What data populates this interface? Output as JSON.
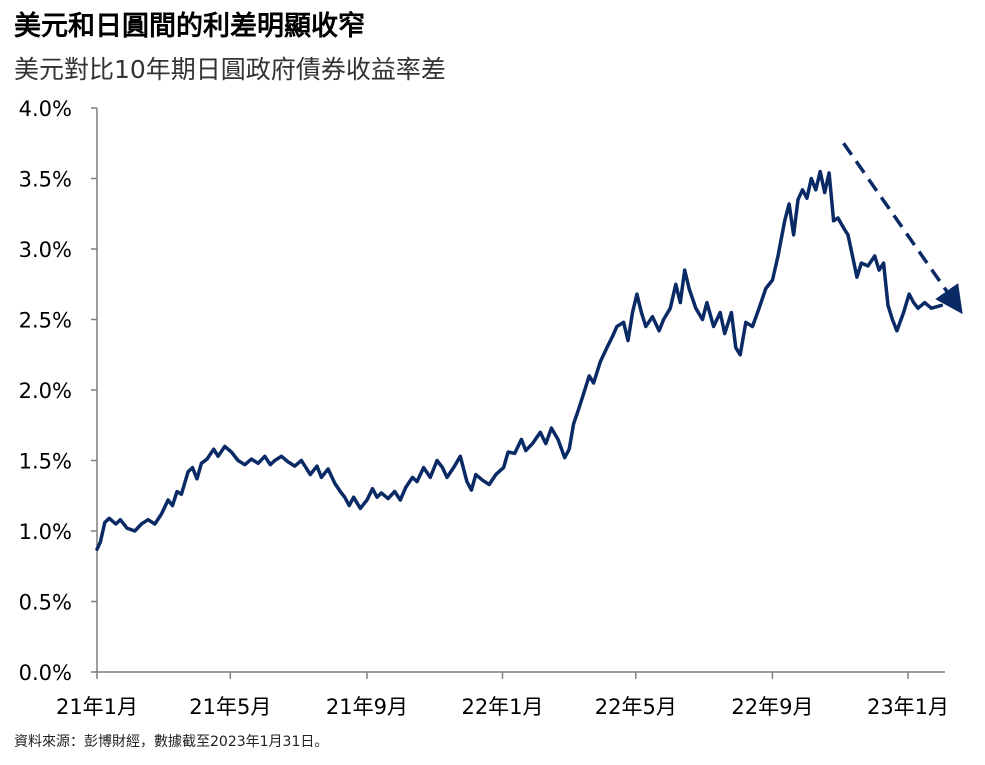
{
  "header": {
    "title": "美元和日圓間的利差明顯收窄",
    "subtitle": "美元對比10年期日圓政府債券收益率差"
  },
  "footer": {
    "source": "資料來源：彭博財經，數據截至2023年1月31日。"
  },
  "colors": {
    "line": "#0a2a66",
    "axis": "#7f7f7f"
  },
  "chart_data": {
    "type": "line",
    "title": "美元和日圓間的利差明顯收窄",
    "subtitle": "美元對比10年期日圓政府債券收益率差",
    "ylim": [
      0,
      4
    ],
    "y_ticks": [
      0,
      0.5,
      1,
      1.5,
      2,
      2.5,
      3,
      3.5,
      4
    ],
    "y_tick_labels": [
      "0.0%",
      "0.5%",
      "1.0%",
      "1.5%",
      "2.0%",
      "2.5%",
      "3.0%",
      "3.5%",
      "4.0%"
    ],
    "x_range": [
      "2021-01-01",
      "2023-01-31"
    ],
    "x_ticks": [
      "2021-01-01",
      "2021-05-01",
      "2021-09-01",
      "2022-01-01",
      "2022-05-01",
      "2022-09-01",
      "2023-01-01"
    ],
    "x_tick_labels": [
      "21年1月",
      "21年5月",
      "21年9月",
      "22年1月",
      "22年5月",
      "22年9月",
      "23年1月"
    ],
    "grid": false,
    "series": [
      {
        "points": [
          [
            "2021-01-01",
            0.87
          ],
          [
            "2021-01-04",
            0.92
          ],
          [
            "2021-01-08",
            1.06
          ],
          [
            "2021-01-12",
            1.09
          ],
          [
            "2021-01-18",
            1.05
          ],
          [
            "2021-01-22",
            1.08
          ],
          [
            "2021-01-28",
            1.02
          ],
          [
            "2021-02-04",
            1.0
          ],
          [
            "2021-02-10",
            1.05
          ],
          [
            "2021-02-16",
            1.08
          ],
          [
            "2021-02-22",
            1.05
          ],
          [
            "2021-02-28",
            1.12
          ],
          [
            "2021-03-06",
            1.22
          ],
          [
            "2021-03-10",
            1.18
          ],
          [
            "2021-03-14",
            1.28
          ],
          [
            "2021-03-18",
            1.26
          ],
          [
            "2021-03-24",
            1.42
          ],
          [
            "2021-03-28",
            1.45
          ],
          [
            "2021-04-01",
            1.37
          ],
          [
            "2021-04-05",
            1.48
          ],
          [
            "2021-04-10",
            1.51
          ],
          [
            "2021-04-16",
            1.58
          ],
          [
            "2021-04-20",
            1.53
          ],
          [
            "2021-04-26",
            1.6
          ],
          [
            "2021-05-02",
            1.56
          ],
          [
            "2021-05-08",
            1.5
          ],
          [
            "2021-05-14",
            1.47
          ],
          [
            "2021-05-20",
            1.51
          ],
          [
            "2021-05-26",
            1.48
          ],
          [
            "2021-06-01",
            1.53
          ],
          [
            "2021-06-06",
            1.47
          ],
          [
            "2021-06-10",
            1.5
          ],
          [
            "2021-06-16",
            1.53
          ],
          [
            "2021-06-22",
            1.49
          ],
          [
            "2021-06-28",
            1.46
          ],
          [
            "2021-07-04",
            1.5
          ],
          [
            "2021-07-08",
            1.45
          ],
          [
            "2021-07-12",
            1.4
          ],
          [
            "2021-07-18",
            1.46
          ],
          [
            "2021-07-22",
            1.38
          ],
          [
            "2021-07-28",
            1.44
          ],
          [
            "2021-08-03",
            1.34
          ],
          [
            "2021-08-08",
            1.28
          ],
          [
            "2021-08-12",
            1.24
          ],
          [
            "2021-08-16",
            1.18
          ],
          [
            "2021-08-20",
            1.24
          ],
          [
            "2021-08-26",
            1.16
          ],
          [
            "2021-09-01",
            1.22
          ],
          [
            "2021-09-06",
            1.3
          ],
          [
            "2021-09-10",
            1.24
          ],
          [
            "2021-09-14",
            1.27
          ],
          [
            "2021-09-20",
            1.23
          ],
          [
            "2021-09-26",
            1.28
          ],
          [
            "2021-10-01",
            1.22
          ],
          [
            "2021-10-06",
            1.31
          ],
          [
            "2021-10-12",
            1.38
          ],
          [
            "2021-10-16",
            1.35
          ],
          [
            "2021-10-22",
            1.45
          ],
          [
            "2021-10-28",
            1.38
          ],
          [
            "2021-11-03",
            1.5
          ],
          [
            "2021-11-08",
            1.45
          ],
          [
            "2021-11-12",
            1.38
          ],
          [
            "2021-11-18",
            1.45
          ],
          [
            "2021-11-24",
            1.53
          ],
          [
            "2021-11-30",
            1.35
          ],
          [
            "2021-12-04",
            1.29
          ],
          [
            "2021-12-08",
            1.4
          ],
          [
            "2021-12-14",
            1.36
          ],
          [
            "2021-12-20",
            1.33
          ],
          [
            "2021-12-26",
            1.4
          ],
          [
            "2022-01-02",
            1.45
          ],
          [
            "2022-01-06",
            1.56
          ],
          [
            "2022-01-12",
            1.55
          ],
          [
            "2022-01-18",
            1.65
          ],
          [
            "2022-01-22",
            1.57
          ],
          [
            "2022-01-28",
            1.62
          ],
          [
            "2022-02-04",
            1.7
          ],
          [
            "2022-02-09",
            1.62
          ],
          [
            "2022-02-14",
            1.73
          ],
          [
            "2022-02-20",
            1.65
          ],
          [
            "2022-02-26",
            1.52
          ],
          [
            "2022-03-02",
            1.58
          ],
          [
            "2022-03-06",
            1.76
          ],
          [
            "2022-03-10",
            1.85
          ],
          [
            "2022-03-14",
            1.95
          ],
          [
            "2022-03-20",
            2.1
          ],
          [
            "2022-03-24",
            2.05
          ],
          [
            "2022-03-30",
            2.2
          ],
          [
            "2022-04-05",
            2.3
          ],
          [
            "2022-04-10",
            2.38
          ],
          [
            "2022-04-14",
            2.45
          ],
          [
            "2022-04-20",
            2.48
          ],
          [
            "2022-04-24",
            2.35
          ],
          [
            "2022-04-28",
            2.55
          ],
          [
            "2022-05-02",
            2.68
          ],
          [
            "2022-05-06",
            2.55
          ],
          [
            "2022-05-10",
            2.45
          ],
          [
            "2022-05-16",
            2.52
          ],
          [
            "2022-05-22",
            2.42
          ],
          [
            "2022-05-26",
            2.5
          ],
          [
            "2022-06-01",
            2.58
          ],
          [
            "2022-06-06",
            2.75
          ],
          [
            "2022-06-10",
            2.62
          ],
          [
            "2022-06-14",
            2.85
          ],
          [
            "2022-06-18",
            2.72
          ],
          [
            "2022-06-24",
            2.58
          ],
          [
            "2022-06-30",
            2.5
          ],
          [
            "2022-07-04",
            2.62
          ],
          [
            "2022-07-10",
            2.45
          ],
          [
            "2022-07-16",
            2.55
          ],
          [
            "2022-07-20",
            2.4
          ],
          [
            "2022-07-26",
            2.55
          ],
          [
            "2022-07-30",
            2.3
          ],
          [
            "2022-08-03",
            2.25
          ],
          [
            "2022-08-08",
            2.48
          ],
          [
            "2022-08-14",
            2.45
          ],
          [
            "2022-08-20",
            2.58
          ],
          [
            "2022-08-26",
            2.72
          ],
          [
            "2022-09-01",
            2.78
          ],
          [
            "2022-09-06",
            2.95
          ],
          [
            "2022-09-12",
            3.2
          ],
          [
            "2022-09-16",
            3.32
          ],
          [
            "2022-09-20",
            3.1
          ],
          [
            "2022-09-24",
            3.35
          ],
          [
            "2022-09-28",
            3.42
          ],
          [
            "2022-10-02",
            3.36
          ],
          [
            "2022-10-06",
            3.5
          ],
          [
            "2022-10-10",
            3.42
          ],
          [
            "2022-10-14",
            3.55
          ],
          [
            "2022-10-18",
            3.4
          ],
          [
            "2022-10-22",
            3.54
          ],
          [
            "2022-10-26",
            3.2
          ],
          [
            "2022-10-30",
            3.22
          ],
          [
            "2022-11-04",
            3.15
          ],
          [
            "2022-11-08",
            3.1
          ],
          [
            "2022-11-12",
            2.95
          ],
          [
            "2022-11-16",
            2.8
          ],
          [
            "2022-11-20",
            2.9
          ],
          [
            "2022-11-26",
            2.88
          ],
          [
            "2022-12-02",
            2.95
          ],
          [
            "2022-12-06",
            2.85
          ],
          [
            "2022-12-10",
            2.9
          ],
          [
            "2022-12-14",
            2.6
          ],
          [
            "2022-12-18",
            2.5
          ],
          [
            "2022-12-22",
            2.42
          ],
          [
            "2022-12-28",
            2.55
          ],
          [
            "2023-01-02",
            2.68
          ],
          [
            "2023-01-06",
            2.62
          ],
          [
            "2023-01-10",
            2.58
          ],
          [
            "2023-01-16",
            2.62
          ],
          [
            "2023-01-22",
            2.58
          ],
          [
            "2023-01-31",
            2.6
          ]
        ]
      }
    ],
    "annotations": [
      {
        "type": "dashed-arrow",
        "from": [
          "2022-11-04",
          3.75
        ],
        "to": [
          "2023-02-12",
          2.62
        ]
      }
    ]
  }
}
